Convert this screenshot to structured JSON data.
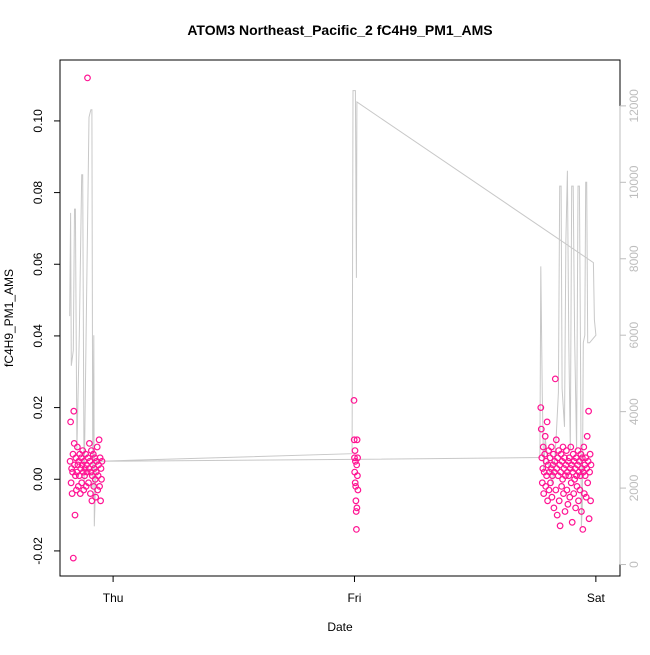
{
  "chart_data": {
    "type": "scatter",
    "title": "ATOM3 Northeast_Pacific_2 fC4H9_PM1_AMS",
    "xlabel": "Date",
    "ylabel": "fC4H9_PM1_AMS",
    "x_ticks": [
      "Thu",
      "Fri",
      "Sat"
    ],
    "x_tick_values": [
      0,
      1,
      2
    ],
    "xlim": [
      -0.22,
      2.1
    ],
    "ylim": [
      -0.027,
      0.117
    ],
    "y_ticks": [
      -0.02,
      0.0,
      0.02,
      0.04,
      0.06,
      0.08,
      0.1
    ],
    "y_tick_labels": [
      "-0.02",
      "0.00",
      "0.02",
      "0.04",
      "0.06",
      "0.08",
      "0.10"
    ],
    "y2_ticks": [
      0,
      2000,
      4000,
      6000,
      8000,
      10000,
      12000
    ],
    "y2_tick_labels": [
      "0",
      "2000",
      "4000",
      "6000",
      "8000",
      "10000",
      "12000"
    ],
    "y2lim": [
      -300,
      13200
    ],
    "grid": false,
    "point_color": "#ff1493",
    "secondary_color": "#c8c8c8",
    "series": [
      {
        "style": "points",
        "points": [
          [
            -0.178,
            0.005
          ],
          [
            -0.176,
            0.016
          ],
          [
            -0.174,
            -0.001
          ],
          [
            -0.172,
            0.003
          ],
          [
            -0.17,
            -0.004
          ],
          [
            -0.168,
            0.002
          ],
          [
            -0.166,
            0.007
          ],
          [
            -0.165,
            -0.022
          ],
          [
            -0.163,
            0.019
          ],
          [
            -0.161,
            0.01
          ],
          [
            -0.16,
            0.004
          ],
          [
            -0.158,
            -0.01
          ],
          [
            -0.156,
            0.001
          ],
          [
            -0.154,
            0.006
          ],
          [
            -0.152,
            -0.003
          ],
          [
            -0.15,
            0.002
          ],
          [
            -0.148,
            0.009
          ],
          [
            -0.146,
            0.004
          ],
          [
            -0.144,
            -0.002
          ],
          [
            -0.142,
            0.005
          ],
          [
            -0.14,
            0.001
          ],
          [
            -0.138,
            0.007
          ],
          [
            -0.136,
            -0.004
          ],
          [
            -0.134,
            0.003
          ],
          [
            -0.132,
            0.006
          ],
          [
            -0.13,
            -0.001
          ],
          [
            -0.128,
            0.004
          ],
          [
            -0.126,
            0.008
          ],
          [
            -0.124,
            0.002
          ],
          [
            -0.122,
            -0.003
          ],
          [
            -0.12,
            0.005
          ],
          [
            -0.118,
            0.001
          ],
          [
            -0.116,
            0.003
          ],
          [
            -0.114,
            0.007
          ],
          [
            -0.112,
            -0.002
          ],
          [
            -0.11,
            0.004
          ],
          [
            -0.108,
            0.002
          ],
          [
            -0.106,
            0.112
          ],
          [
            -0.104,
            0.006
          ],
          [
            -0.102,
            -0.001
          ],
          [
            -0.1,
            0.003
          ],
          [
            -0.098,
            0.01
          ],
          [
            -0.096,
            0.005
          ],
          [
            -0.094,
            -0.004
          ],
          [
            -0.092,
            0.002
          ],
          [
            -0.09,
            0.008
          ],
          [
            -0.088,
            -0.006
          ],
          [
            -0.086,
            0.001
          ],
          [
            -0.084,
            0.004
          ],
          [
            -0.082,
            0.007
          ],
          [
            -0.08,
            -0.002
          ],
          [
            -0.078,
            0.003
          ],
          [
            -0.076,
            0.006
          ],
          [
            -0.074,
            0.0
          ],
          [
            -0.072,
            -0.005
          ],
          [
            -0.07,
            0.002
          ],
          [
            -0.068,
            0.005
          ],
          [
            -0.066,
            0.009
          ],
          [
            -0.064,
            -0.003
          ],
          [
            -0.062,
            0.001
          ],
          [
            -0.06,
            0.004
          ],
          [
            -0.058,
            0.011
          ],
          [
            -0.056,
            -0.002
          ],
          [
            -0.054,
            0.006
          ],
          [
            -0.052,
            -0.006
          ],
          [
            -0.05,
            0.003
          ],
          [
            -0.048,
            0.0
          ],
          [
            -0.046,
            0.005
          ],
          [
            0.998,
            0.022
          ],
          [
            0.999,
            0.011
          ],
          [
            1.0,
            0.006
          ],
          [
            1.001,
            0.002
          ],
          [
            1.002,
            0.008
          ],
          [
            1.003,
            -0.001
          ],
          [
            1.004,
            0.005
          ],
          [
            1.005,
            -0.002
          ],
          [
            1.006,
            -0.006
          ],
          [
            1.007,
            -0.009
          ],
          [
            1.008,
            -0.014
          ],
          [
            1.009,
            0.004
          ],
          [
            1.01,
            -0.008
          ],
          [
            1.011,
            0.011
          ],
          [
            1.012,
            0.001
          ],
          [
            1.013,
            0.006
          ],
          [
            1.014,
            -0.003
          ],
          [
            1.772,
            0.02
          ],
          [
            1.774,
            0.014
          ],
          [
            1.776,
            0.006
          ],
          [
            1.778,
            -0.001
          ],
          [
            1.78,
            0.003
          ],
          [
            1.782,
            0.009
          ],
          [
            1.784,
            -0.004
          ],
          [
            1.786,
            0.002
          ],
          [
            1.788,
            0.007
          ],
          [
            1.79,
            0.012
          ],
          [
            1.792,
            -0.002
          ],
          [
            1.794,
            0.005
          ],
          [
            1.796,
            0.001
          ],
          [
            1.798,
            0.016
          ],
          [
            1.8,
            -0.006
          ],
          [
            1.802,
            0.004
          ],
          [
            1.804,
            0.008
          ],
          [
            1.806,
            -0.003
          ],
          [
            1.808,
            0.002
          ],
          [
            1.81,
            0.006
          ],
          [
            1.812,
            -0.001
          ],
          [
            1.814,
            0.003
          ],
          [
            1.816,
            0.009
          ],
          [
            1.818,
            -0.005
          ],
          [
            1.82,
            0.001
          ],
          [
            1.822,
            0.004
          ],
          [
            1.824,
            0.007
          ],
          [
            1.826,
            -0.008
          ],
          [
            1.828,
            0.002
          ],
          [
            1.83,
            0.005
          ],
          [
            1.832,
            0.028
          ],
          [
            1.834,
            -0.003
          ],
          [
            1.836,
            0.011
          ],
          [
            1.838,
            0.003
          ],
          [
            1.84,
            -0.01
          ],
          [
            1.842,
            0.006
          ],
          [
            1.844,
            0.001
          ],
          [
            1.846,
            0.008
          ],
          [
            1.848,
            -0.006
          ],
          [
            1.85,
            0.004
          ],
          [
            1.852,
            -0.013
          ],
          [
            1.854,
            0.002
          ],
          [
            1.856,
            0.007
          ],
          [
            1.858,
            -0.002
          ],
          [
            1.86,
            0.005
          ],
          [
            1.862,
            0.0
          ],
          [
            1.864,
            0.009
          ],
          [
            1.866,
            -0.004
          ],
          [
            1.868,
            0.003
          ],
          [
            1.87,
            0.006
          ],
          [
            1.872,
            -0.009
          ],
          [
            1.874,
            0.001
          ],
          [
            1.876,
            0.004
          ],
          [
            1.878,
            0.008
          ],
          [
            1.88,
            -0.003
          ],
          [
            1.882,
            0.002
          ],
          [
            1.884,
            -0.007
          ],
          [
            1.886,
            0.005
          ],
          [
            1.888,
            0.001
          ],
          [
            1.89,
            0.006
          ],
          [
            1.892,
            -0.005
          ],
          [
            1.894,
            0.003
          ],
          [
            1.896,
            0.009
          ],
          [
            1.898,
            -0.001
          ],
          [
            1.9,
            0.004
          ],
          [
            1.902,
            -0.012
          ],
          [
            1.904,
            0.002
          ],
          [
            1.906,
            0.007
          ],
          [
            1.908,
            -0.004
          ],
          [
            1.91,
            0.005
          ],
          [
            1.912,
            0.0
          ],
          [
            1.914,
            0.003
          ],
          [
            1.916,
            -0.008
          ],
          [
            1.918,
            0.006
          ],
          [
            1.92,
            0.001
          ],
          [
            1.922,
            -0.002
          ],
          [
            1.924,
            0.004
          ],
          [
            1.926,
            0.008
          ],
          [
            1.928,
            -0.006
          ],
          [
            1.93,
            0.002
          ],
          [
            1.932,
            0.005
          ],
          [
            1.934,
            -0.003
          ],
          [
            1.936,
            0.001
          ],
          [
            1.938,
            0.007
          ],
          [
            1.94,
            -0.009
          ],
          [
            1.942,
            0.003
          ],
          [
            1.944,
            0.006
          ],
          [
            1.946,
            -0.014
          ],
          [
            1.948,
            0.002
          ],
          [
            1.95,
            0.009
          ],
          [
            1.952,
            -0.004
          ],
          [
            1.954,
            0.004
          ],
          [
            1.956,
            0.001
          ],
          [
            1.958,
            0.006
          ],
          [
            1.96,
            -0.005
          ],
          [
            1.962,
            0.003
          ],
          [
            1.964,
            0.012
          ],
          [
            1.966,
            -0.001
          ],
          [
            1.968,
            0.005
          ],
          [
            1.97,
            0.019
          ],
          [
            1.972,
            -0.011
          ],
          [
            1.974,
            0.002
          ],
          [
            1.976,
            0.007
          ],
          [
            1.978,
            -0.006
          ],
          [
            1.98,
            0.004
          ]
        ]
      },
      {
        "style": "line",
        "axis": "right",
        "points": [
          [
            -0.18,
            6500
          ],
          [
            -0.176,
            9200
          ],
          [
            -0.173,
            5200
          ],
          [
            -0.165,
            5600
          ],
          [
            -0.16,
            9300
          ],
          [
            -0.156,
            9300
          ],
          [
            -0.15,
            3000
          ],
          [
            -0.14,
            6000
          ],
          [
            -0.13,
            10200
          ],
          [
            -0.126,
            10200
          ],
          [
            -0.12,
            2000
          ],
          [
            -0.112,
            6000
          ],
          [
            -0.1,
            11700
          ],
          [
            -0.096,
            11800
          ],
          [
            -0.092,
            11900
          ],
          [
            -0.088,
            11900
          ],
          [
            -0.084,
            2000
          ],
          [
            -0.08,
            6000
          ],
          [
            -0.078,
            1000
          ],
          [
            -0.07,
            2700
          ],
          [
            0.99,
            2900
          ],
          [
            0.994,
            12400
          ],
          [
            1.004,
            12400
          ],
          [
            1.008,
            7500
          ],
          [
            1.01,
            12100
          ],
          [
            1.99,
            7900
          ],
          [
            1.994,
            6400
          ],
          [
            2.0,
            6000
          ],
          [
            1.974,
            5800
          ],
          [
            1.966,
            5800
          ],
          [
            1.962,
            10000
          ],
          [
            1.958,
            10000
          ],
          [
            1.954,
            6000
          ],
          [
            1.948,
            5800
          ],
          [
            1.944,
            1500
          ],
          [
            1.94,
            1000
          ],
          [
            1.936,
            6000
          ],
          [
            1.932,
            9900
          ],
          [
            1.926,
            9900
          ],
          [
            1.92,
            3000
          ],
          [
            1.912,
            6000
          ],
          [
            1.906,
            9900
          ],
          [
            1.9,
            9900
          ],
          [
            1.894,
            3000
          ],
          [
            1.888,
            5800
          ],
          [
            1.882,
            10300
          ],
          [
            1.876,
            8500
          ],
          [
            1.87,
            3600
          ],
          [
            1.86,
            4600
          ],
          [
            1.856,
            9900
          ],
          [
            1.85,
            9900
          ],
          [
            1.845,
            4500
          ],
          [
            1.836,
            3400
          ],
          [
            1.83,
            2800
          ],
          [
            1.82,
            2100
          ],
          [
            1.81,
            2400
          ],
          [
            1.8,
            2800
          ],
          [
            1.79,
            3300
          ],
          [
            1.784,
            2400
          ],
          [
            1.778,
            4400
          ],
          [
            1.772,
            7800
          ],
          [
            1.768,
            2800
          ],
          [
            0.992,
            2750
          ],
          [
            -0.07,
            2700
          ]
        ]
      }
    ]
  }
}
